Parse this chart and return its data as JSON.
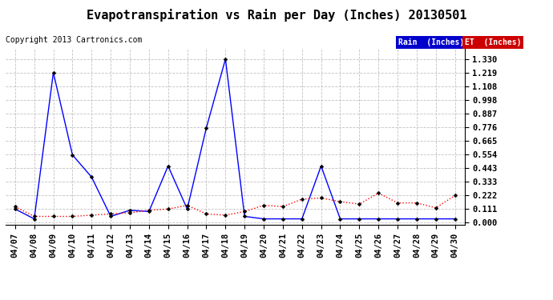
{
  "title": "Evapotranspiration vs Rain per Day (Inches) 20130501",
  "copyright": "Copyright 2013 Cartronics.com",
  "labels": [
    "04/07",
    "04/08",
    "04/09",
    "04/10",
    "04/11",
    "04/12",
    "04/13",
    "04/14",
    "04/15",
    "04/16",
    "04/17",
    "04/18",
    "04/19",
    "04/20",
    "04/21",
    "04/22",
    "04/23",
    "04/24",
    "04/25",
    "04/26",
    "04/27",
    "04/28",
    "04/29",
    "04/30"
  ],
  "rain": [
    0.11,
    0.03,
    1.22,
    0.55,
    0.37,
    0.05,
    0.1,
    0.09,
    0.46,
    0.11,
    0.77,
    1.33,
    0.05,
    0.03,
    0.03,
    0.03,
    0.46,
    0.03,
    0.03,
    0.03,
    0.03,
    0.03,
    0.03,
    0.03
  ],
  "et": [
    0.13,
    0.05,
    0.05,
    0.05,
    0.06,
    0.07,
    0.08,
    0.1,
    0.11,
    0.14,
    0.07,
    0.06,
    0.09,
    0.14,
    0.13,
    0.19,
    0.2,
    0.17,
    0.15,
    0.24,
    0.16,
    0.16,
    0.12,
    0.22
  ],
  "rain_color": "#0000ff",
  "et_color": "#ff0000",
  "bg_color": "#ffffff",
  "plot_bg": "#ffffff",
  "grid_color": "#bbbbbb",
  "yticks": [
    0.0,
    0.111,
    0.222,
    0.333,
    0.443,
    0.554,
    0.665,
    0.776,
    0.887,
    0.998,
    1.108,
    1.219,
    1.33
  ],
  "legend_rain_bg": "#0000cc",
  "legend_et_bg": "#cc0000",
  "title_fontsize": 11,
  "tick_fontsize": 7.5,
  "copyright_fontsize": 7
}
